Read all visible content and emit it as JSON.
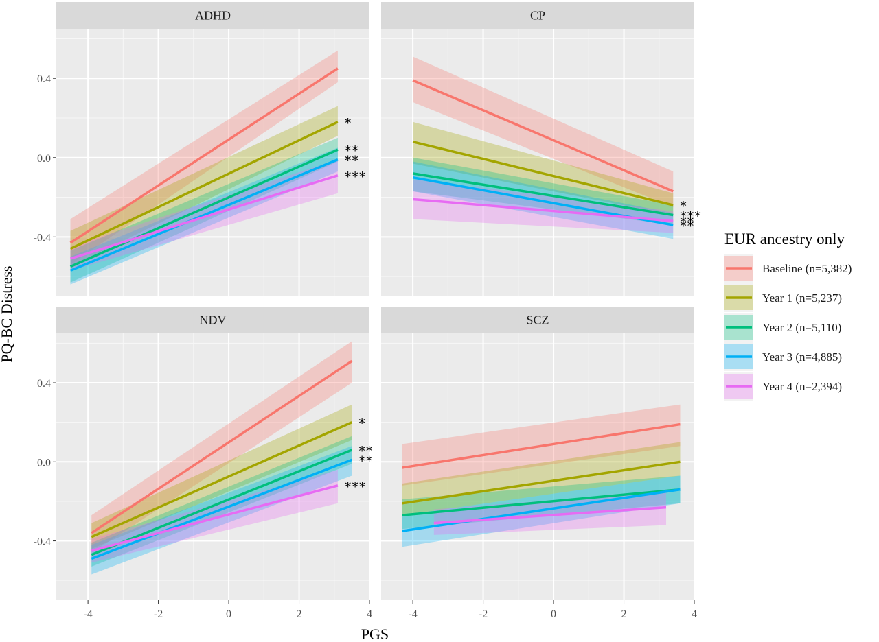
{
  "chart_data": {
    "type": "line",
    "xlabel": "PGS",
    "ylabel": "PQ-BC Distress",
    "x_ticks": [
      "-4",
      "-2",
      "0",
      "2",
      "4"
    ],
    "y_ticks": [
      "0.4",
      "0.0",
      "-0.4"
    ],
    "x_range": [
      -4.9,
      4.0
    ],
    "y_range": [
      -0.7,
      0.65
    ],
    "grid": true,
    "legend": {
      "title": "EUR ancestry only",
      "placement": "right",
      "items": [
        {
          "label": "Baseline (n=5,382)",
          "color": "#F8766D"
        },
        {
          "label": "Year 1 (n=5,237)",
          "color": "#A3A500"
        },
        {
          "label": "Year 2 (n=5,110)",
          "color": "#00BF7D"
        },
        {
          "label": "Year 3 (n=4,885)",
          "color": "#00B0F6"
        },
        {
          "label": "Year 4 (n=2,394)",
          "color": "#E76BF3"
        }
      ]
    },
    "panels": [
      {
        "name": "ADHD",
        "lines": [
          {
            "series": 0,
            "x": [
              -4.5,
              3.1
            ],
            "y": [
              -0.43,
              0.45
            ],
            "ci_low": [
              -0.54,
              0.38
            ],
            "ci_high": [
              -0.31,
              0.54
            ]
          },
          {
            "series": 1,
            "x": [
              -4.5,
              3.1
            ],
            "y": [
              -0.46,
              0.18
            ],
            "ci_low": [
              -0.55,
              0.11
            ],
            "ci_high": [
              -0.37,
              0.26
            ]
          },
          {
            "series": 2,
            "x": [
              -4.5,
              3.1
            ],
            "y": [
              -0.55,
              0.04
            ],
            "ci_low": [
              -0.63,
              -0.02
            ],
            "ci_high": [
              -0.47,
              0.1
            ]
          },
          {
            "series": 3,
            "x": [
              -4.5,
              3.1
            ],
            "y": [
              -0.57,
              -0.01
            ],
            "ci_low": [
              -0.64,
              -0.07
            ],
            "ci_high": [
              -0.5,
              0.05
            ]
          },
          {
            "series": 4,
            "x": [
              -4.5,
              3.1
            ],
            "y": [
              -0.51,
              -0.09
            ],
            "ci_low": [
              -0.57,
              -0.18
            ],
            "ci_high": [
              -0.45,
              -0.01
            ]
          }
        ],
        "stars": [
          "*",
          "**",
          "**",
          "***"
        ]
      },
      {
        "name": "CP",
        "lines": [
          {
            "series": 0,
            "x": [
              -4.0,
              3.4
            ],
            "y": [
              0.39,
              -0.17
            ],
            "ci_low": [
              0.28,
              -0.25
            ],
            "ci_high": [
              0.51,
              -0.07
            ]
          },
          {
            "series": 1,
            "x": [
              -4.0,
              3.4
            ],
            "y": [
              0.08,
              -0.24
            ],
            "ci_low": [
              -0.03,
              -0.29
            ],
            "ci_high": [
              0.18,
              -0.18
            ]
          },
          {
            "series": 2,
            "x": [
              -4.0,
              3.4
            ],
            "y": [
              -0.08,
              -0.29
            ],
            "ci_low": [
              -0.17,
              -0.34
            ],
            "ci_high": [
              0.0,
              -0.24
            ]
          },
          {
            "series": 3,
            "x": [
              -4.0,
              3.4
            ],
            "y": [
              -0.1,
              -0.34
            ],
            "ci_low": [
              -0.17,
              -0.41
            ],
            "ci_high": [
              -0.02,
              -0.28
            ]
          },
          {
            "series": 4,
            "x": [
              -4.0,
              3.4
            ],
            "y": [
              -0.21,
              -0.32
            ],
            "ci_low": [
              -0.31,
              -0.38
            ],
            "ci_high": [
              -0.11,
              -0.27
            ]
          }
        ],
        "stars": [
          "*",
          "***",
          "**",
          "**"
        ]
      },
      {
        "name": "NDV",
        "lines": [
          {
            "series": 0,
            "x": [
              -3.9,
              3.5
            ],
            "y": [
              -0.36,
              0.51
            ],
            "ci_low": [
              -0.46,
              0.4
            ],
            "ci_high": [
              -0.27,
              0.61
            ]
          },
          {
            "series": 1,
            "x": [
              -3.9,
              3.5
            ],
            "y": [
              -0.38,
              0.2
            ],
            "ci_low": [
              -0.44,
              0.11
            ],
            "ci_high": [
              -0.31,
              0.29
            ]
          },
          {
            "series": 2,
            "x": [
              -3.9,
              3.5
            ],
            "y": [
              -0.47,
              0.06
            ],
            "ci_low": [
              -0.53,
              -0.01
            ],
            "ci_high": [
              -0.41,
              0.13
            ]
          },
          {
            "series": 3,
            "x": [
              -3.9,
              3.5
            ],
            "y": [
              -0.49,
              0.01
            ],
            "ci_low": [
              -0.57,
              -0.07
            ],
            "ci_high": [
              -0.42,
              0.08
            ]
          },
          {
            "series": 4,
            "x": [
              -3.9,
              3.1
            ],
            "y": [
              -0.45,
              -0.12
            ],
            "ci_low": [
              -0.51,
              -0.21
            ],
            "ci_high": [
              -0.39,
              -0.04
            ]
          }
        ],
        "stars": [
          "*",
          "**",
          "**",
          "***"
        ]
      },
      {
        "name": "SCZ",
        "lines": [
          {
            "series": 0,
            "x": [
              -4.3,
              3.6
            ],
            "y": [
              -0.03,
              0.19
            ],
            "ci_low": [
              -0.12,
              0.08
            ],
            "ci_high": [
              0.09,
              0.29
            ]
          },
          {
            "series": 1,
            "x": [
              -4.3,
              3.6
            ],
            "y": [
              -0.21,
              0.0
            ],
            "ci_low": [
              -0.27,
              -0.07
            ],
            "ci_high": [
              -0.11,
              0.1
            ]
          },
          {
            "series": 2,
            "x": [
              -4.3,
              3.6
            ],
            "y": [
              -0.27,
              -0.14
            ],
            "ci_low": [
              -0.34,
              -0.21
            ],
            "ci_high": [
              -0.19,
              -0.07
            ]
          },
          {
            "series": 3,
            "x": [
              -4.3,
              3.6
            ],
            "y": [
              -0.35,
              -0.14
            ],
            "ci_low": [
              -0.43,
              -0.21
            ],
            "ci_high": [
              -0.27,
              -0.07
            ]
          },
          {
            "series": 4,
            "x": [
              -3.4,
              3.2
            ],
            "y": [
              -0.31,
              -0.23
            ],
            "ci_low": [
              -0.37,
              -0.32
            ],
            "ci_high": [
              -0.24,
              -0.15
            ]
          }
        ],
        "stars": []
      }
    ]
  }
}
